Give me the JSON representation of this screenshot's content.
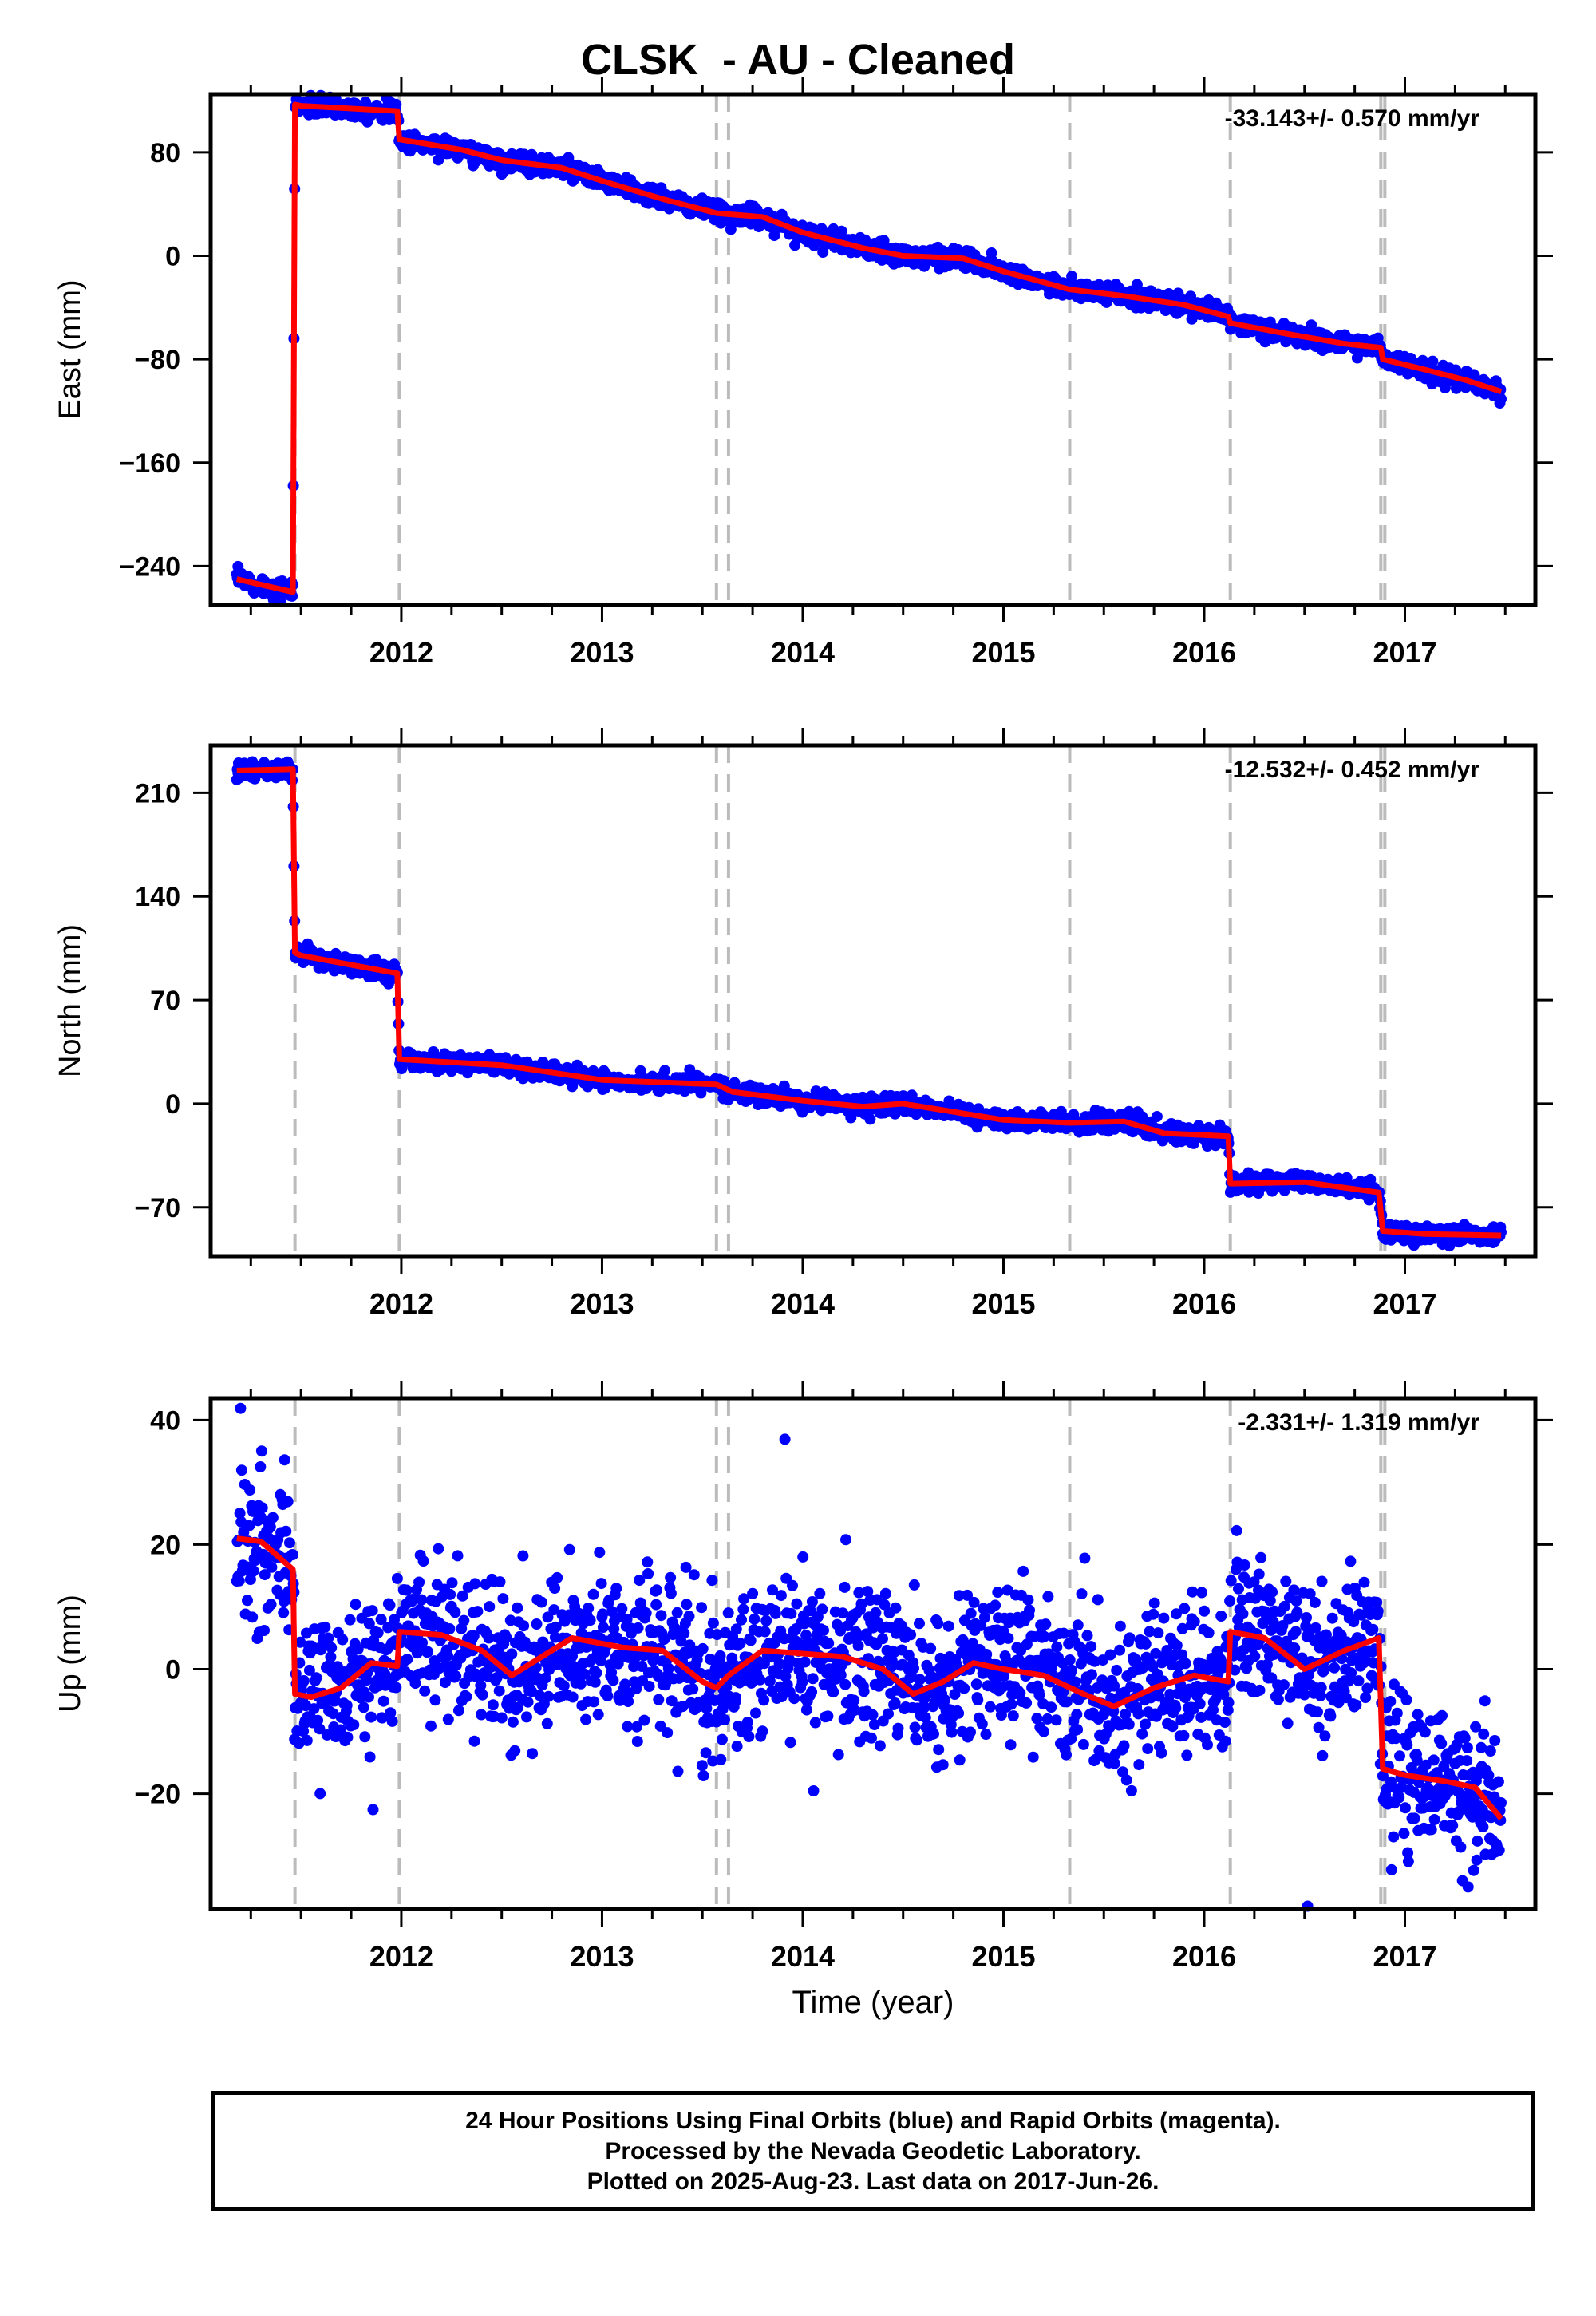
{
  "title": "CLSK  - AU - Cleaned",
  "footer": {
    "line1": "24 Hour Positions Using Final Orbits (blue) and Rapid Orbits (magenta).",
    "line2": "Processed by the Nevada Geodetic Laboratory.",
    "line3": "Plotted on 2025-Aug-23. Last data on 2017-Jun-26."
  },
  "colors": {
    "data": "#0000ff",
    "model": "#ff0000",
    "steps": "#bbbbbb"
  },
  "chart_data": [
    {
      "type": "scatter",
      "name": "east",
      "ylabel": "East (mm)",
      "rate_label": "-33.143+/- 0.570 mm/yr",
      "xlim": [
        2011.05,
        2017.65
      ],
      "ylim": [
        -270,
        125
      ],
      "yticks": [
        80,
        0,
        -80,
        -160,
        -240
      ],
      "xticks": [
        2012,
        2013,
        2014,
        2015,
        2016,
        2017
      ],
      "step_lines": [
        2011.47,
        2011.99,
        2013.57,
        2013.63,
        2015.33,
        2016.13,
        2016.88,
        2016.9
      ],
      "model": {
        "x": [
          2011.18,
          2011.46,
          2011.47,
          2011.5,
          2011.98,
          2011.99,
          2012.3,
          2012.5,
          2012.8,
          2013.0,
          2013.3,
          2013.57,
          2013.8,
          2014.0,
          2014.3,
          2014.5,
          2014.8,
          2015.0,
          2015.33,
          2015.6,
          2015.9,
          2016.12,
          2016.13,
          2016.4,
          2016.7,
          2016.88,
          2016.89,
          2017.1,
          2017.3,
          2017.48
        ],
        "y": [
          -250,
          -260,
          117,
          116,
          112,
          90,
          82,
          74,
          68,
          58,
          44,
          33,
          30,
          18,
          6,
          0,
          -2,
          -12,
          -26,
          -31,
          -38,
          -47,
          -52,
          -60,
          -68,
          -71,
          -80,
          -88,
          -96,
          -105
        ]
      },
      "noise": 3.5
    },
    {
      "type": "scatter",
      "name": "north",
      "ylabel": "North (mm)",
      "rate_label": "-12.532+/- 0.452 mm/yr",
      "xlim": [
        2011.05,
        2017.65
      ],
      "ylim": [
        -103,
        242
      ],
      "yticks": [
        210,
        140,
        70,
        0,
        -70
      ],
      "xticks": [
        2012,
        2013,
        2014,
        2015,
        2016,
        2017
      ],
      "step_lines": [
        2011.47,
        2011.99,
        2013.57,
        2013.63,
        2015.33,
        2016.13,
        2016.88,
        2016.9
      ],
      "model": {
        "x": [
          2011.18,
          2011.46,
          2011.47,
          2011.5,
          2011.98,
          2011.99,
          2012.5,
          2013.0,
          2013.57,
          2013.65,
          2014.0,
          2014.3,
          2014.5,
          2015.0,
          2015.33,
          2015.6,
          2015.8,
          2016.12,
          2016.13,
          2016.5,
          2016.87,
          2016.89,
          2017.1,
          2017.48
        ],
        "y": [
          225,
          226,
          102,
          100,
          88,
          30,
          26,
          16,
          13,
          8,
          2,
          -2,
          0,
          -11,
          -13,
          -12,
          -20,
          -22,
          -54,
          -53,
          -60,
          -86,
          -88,
          -89
        ]
      },
      "noise": 2.8
    },
    {
      "type": "scatter",
      "name": "up",
      "ylabel": "Up (mm)",
      "rate_label": "-2.331+/- 1.319 mm/yr",
      "xlabel": "Time (year)",
      "xlim": [
        2011.05,
        2017.65
      ],
      "ylim": [
        -38.5,
        43.5
      ],
      "yticks": [
        40,
        20,
        0,
        -20
      ],
      "xticks": [
        2012,
        2013,
        2014,
        2015,
        2016,
        2017
      ],
      "step_lines": [
        2011.47,
        2011.99,
        2013.57,
        2013.63,
        2015.33,
        2016.13,
        2016.88,
        2016.9
      ],
      "model": {
        "x": [
          2011.18,
          2011.3,
          2011.46,
          2011.47,
          2011.55,
          2011.7,
          2011.85,
          2011.98,
          2011.99,
          2012.2,
          2012.4,
          2012.55,
          2012.7,
          2012.85,
          2013.1,
          2013.3,
          2013.5,
          2013.57,
          2013.63,
          2013.8,
          2014.0,
          2014.2,
          2014.4,
          2014.55,
          2014.7,
          2014.85,
          2015.0,
          2015.2,
          2015.4,
          2015.55,
          2015.75,
          2015.95,
          2016.12,
          2016.13,
          2016.3,
          2016.5,
          2016.7,
          2016.87,
          2016.89,
          2017.0,
          2017.2,
          2017.35,
          2017.48
        ],
        "y": [
          21,
          20.5,
          16,
          -4,
          -4.5,
          -3,
          1,
          0.5,
          6,
          5.5,
          3,
          -1,
          2,
          5,
          3.5,
          3,
          -2,
          -3,
          -1,
          3,
          2.5,
          2,
          0,
          -4,
          -2,
          1,
          0,
          -1,
          -4,
          -6,
          -3,
          -1,
          -2,
          6,
          5,
          0,
          3,
          5,
          -16,
          -17,
          -18,
          -19,
          -24
        ]
      },
      "noise": 6.0
    }
  ]
}
